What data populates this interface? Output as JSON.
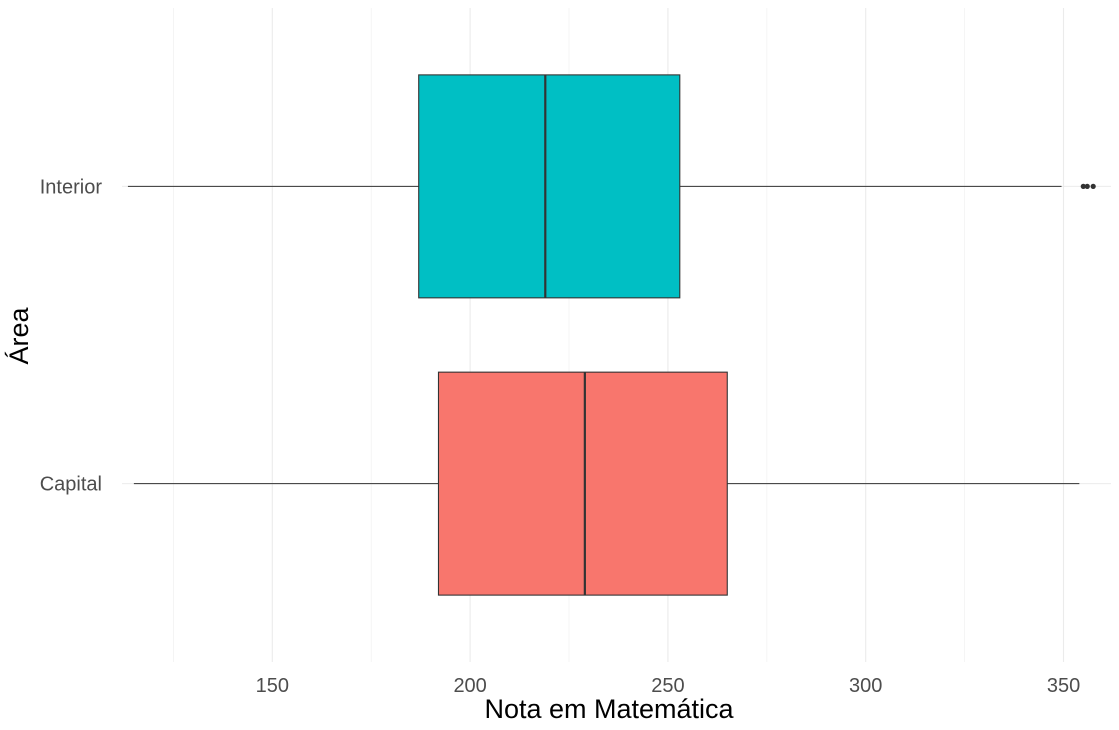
{
  "chart_data": {
    "type": "boxplot",
    "orientation": "horizontal",
    "xlabel": "Nota em Matemática",
    "ylabel": "Área",
    "xlim": [
      112,
      362
    ],
    "x_ticks": [
      150,
      200,
      250,
      300,
      350
    ],
    "x_minor_ticks": [
      125,
      175,
      225,
      275,
      325
    ],
    "grid": true,
    "legend": "none",
    "categories": [
      "Capital",
      "Interior"
    ],
    "series": [
      {
        "category": "Capital",
        "color": "#F8766D",
        "whisker_low": 115,
        "q1": 192,
        "median": 229,
        "q3": 265,
        "whisker_high": 354,
        "outliers": []
      },
      {
        "category": "Interior",
        "color": "#00BFC4",
        "whisker_low": 113.5,
        "q1": 187,
        "median": 219,
        "q3": 253,
        "whisker_high": 349.5,
        "outliers": [
          355,
          356,
          357.5
        ]
      }
    ]
  }
}
